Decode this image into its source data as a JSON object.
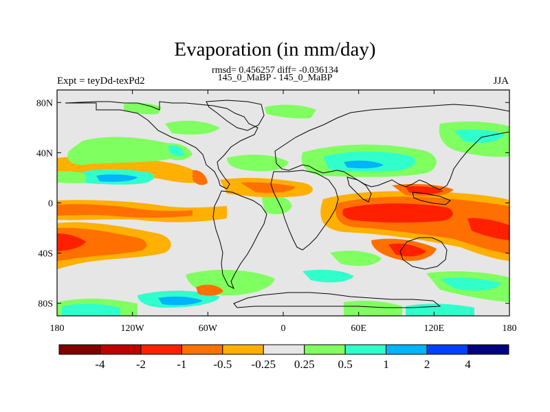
{
  "title": "Evaporation (in mm/day)",
  "subtitle_line1": "rmsd= 0.456257 diff= -0.036134",
  "subtitle_line2": "145_0_MaBP - 145_0_MaBP",
  "left_label": "Expt = teyDd-texPd2",
  "right_label": "JJA",
  "map": {
    "projection": "cylindrical-equidistant",
    "lon_range": [
      -180,
      180
    ],
    "lat_range": [
      -90,
      90
    ],
    "x_ticks": [
      {
        "lon": -180,
        "label": "180"
      },
      {
        "lon": -120,
        "label": "120W"
      },
      {
        "lon": -60,
        "label": "60W"
      },
      {
        "lon": 0,
        "label": "0"
      },
      {
        "lon": 60,
        "label": "60E"
      },
      {
        "lon": 120,
        "label": "120E"
      },
      {
        "lon": 180,
        "label": "180"
      }
    ],
    "y_ticks": [
      {
        "lat": 80,
        "label": "80N"
      },
      {
        "lat": 40,
        "label": "40N"
      },
      {
        "lat": 0,
        "label": "0"
      },
      {
        "lat": -40,
        "label": "40S"
      },
      {
        "lat": -80,
        "label": "80S"
      }
    ]
  },
  "colorbar": {
    "colors": [
      "#800000",
      "#c00000",
      "#ff2000",
      "#ff7000",
      "#ffb000",
      "#e6e6e6",
      "#80ff60",
      "#30ffcc",
      "#00b4ff",
      "#0040ff",
      "#000080"
    ],
    "labels": [
      "-4",
      "-2",
      "-1",
      "-0.5",
      "-0.25",
      "0.25",
      "0.5",
      "1",
      "2",
      "4"
    ]
  },
  "colors": {
    "background": "#e6e6e6",
    "neg_small": "#ffb000",
    "neg_mid": "#ff7000",
    "neg_large": "#ff2000",
    "pos_small": "#80ff60",
    "pos_mid": "#30ffcc",
    "pos_large": "#00b4ff"
  }
}
